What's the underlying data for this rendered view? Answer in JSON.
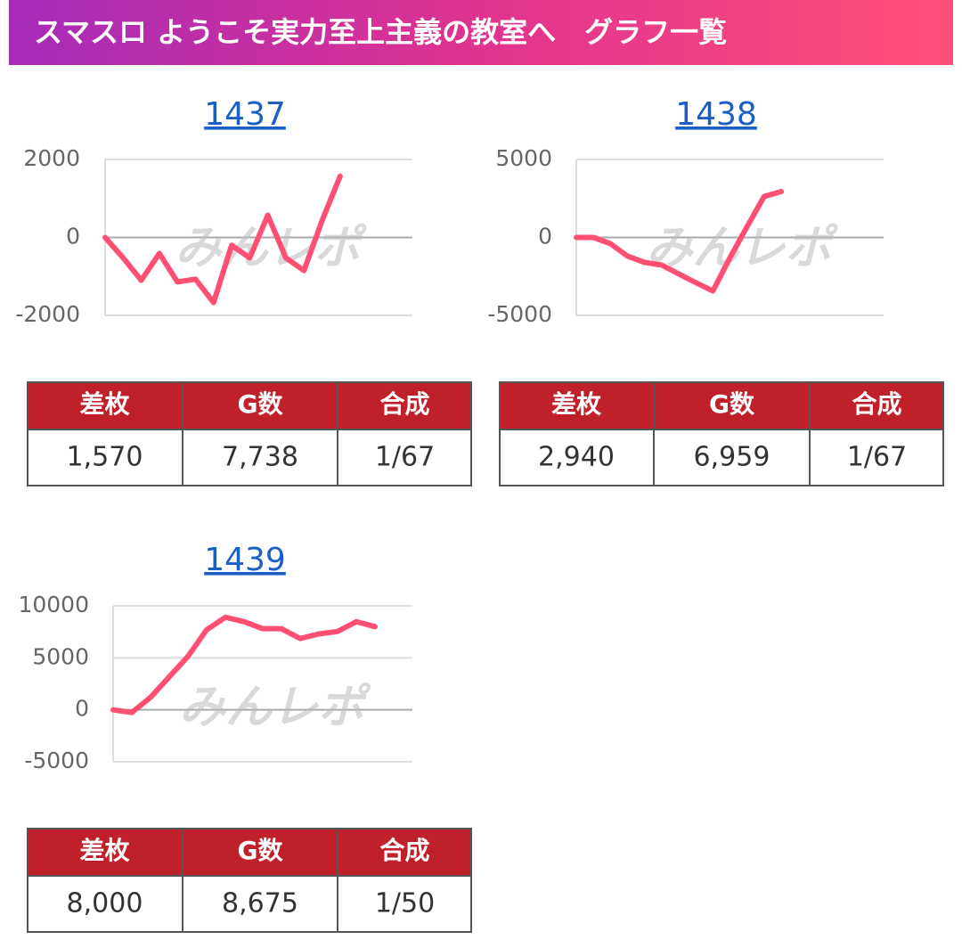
{
  "header": {
    "title": "スマスロ ようこそ実力至上主義の教室へ　グラフ一覧"
  },
  "chart_data": [
    {
      "type": "line",
      "title": "1437",
      "watermark": "みんレポ",
      "color": "#ff5073",
      "x": [
        0,
        1,
        2,
        3,
        4,
        5,
        6,
        7,
        8,
        9,
        10,
        11,
        12,
        13
      ],
      "xlim": [
        0,
        17
      ],
      "values": [
        0,
        -525,
        -1100,
        -410,
        -1140,
        -1070,
        -1670,
        -200,
        -525,
        570,
        -525,
        -850,
        430,
        1570
      ],
      "ylim": [
        -2000,
        2000
      ],
      "yticks": [
        -2000,
        0,
        2000
      ],
      "grid": true
    },
    {
      "type": "line",
      "title": "1438",
      "watermark": "みんレポ",
      "color": "#ff5073",
      "x": [
        0,
        1,
        2,
        3,
        4,
        5,
        6,
        7,
        8,
        9,
        10,
        11,
        12
      ],
      "xlim": [
        0,
        18
      ],
      "values": [
        0,
        0,
        -400,
        -1200,
        -1600,
        -1770,
        -2340,
        -2900,
        -3430,
        -1300,
        690,
        2630,
        2940
      ],
      "ylim": [
        -5000,
        5000
      ],
      "yticks": [
        -5000,
        0,
        5000
      ],
      "grid": true
    },
    {
      "type": "line",
      "title": "1439",
      "watermark": "みんレポ",
      "color": "#ff5073",
      "x": [
        0,
        1,
        2,
        3,
        4,
        5,
        6,
        7,
        8,
        9,
        10,
        11,
        12,
        13,
        14
      ],
      "xlim": [
        0,
        16
      ],
      "values": [
        0,
        -260,
        1200,
        3170,
        5140,
        7700,
        8900,
        8480,
        7800,
        7800,
        6860,
        7300,
        7540,
        8480,
        8000
      ],
      "ylim": [
        -5000,
        10000
      ],
      "yticks": [
        -5000,
        0,
        5000,
        10000
      ],
      "grid": true
    }
  ],
  "tables": [
    {
      "columns": [
        "差枚",
        "G数",
        "合成"
      ],
      "rows": [
        [
          "1,570",
          "7,738",
          "1/67"
        ]
      ]
    },
    {
      "columns": [
        "差枚",
        "G数",
        "合成"
      ],
      "rows": [
        [
          "2,940",
          "6,959",
          "1/67"
        ]
      ]
    },
    {
      "columns": [
        "差枚",
        "G数",
        "合成"
      ],
      "rows": [
        [
          "8,000",
          "8,675",
          "1/50"
        ]
      ]
    }
  ]
}
